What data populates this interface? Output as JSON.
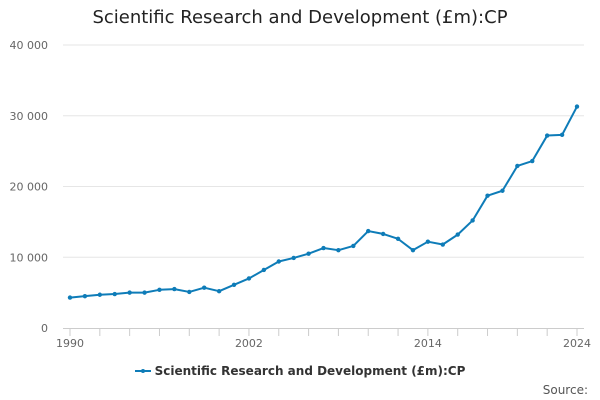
{
  "chart_data": {
    "type": "line",
    "title": "Scientific Research and Development (£m):CP",
    "xlabel": "",
    "ylabel": "",
    "xlim": [
      1990,
      2024
    ],
    "ylim": [
      0,
      40000
    ],
    "y_ticks": [
      0,
      10000,
      20000,
      30000,
      40000
    ],
    "y_tick_labels": [
      "0",
      "10 000",
      "20 000",
      "30 000",
      "40 000"
    ],
    "x_ticks": [
      1990,
      2002,
      2014,
      2024
    ],
    "x_tick_labels": [
      "1990",
      "2002",
      "2014",
      "2024"
    ],
    "grid": true,
    "legend_position": "bottom",
    "series": [
      {
        "name": "Scientific Research and Development (£m):CP",
        "color": "#0e7cb8",
        "x": [
          1990,
          1991,
          1992,
          1993,
          1994,
          1995,
          1996,
          1997,
          1998,
          1999,
          2000,
          2001,
          2002,
          2003,
          2004,
          2005,
          2006,
          2007,
          2008,
          2009,
          2010,
          2011,
          2012,
          2013,
          2014,
          2015,
          2016,
          2017,
          2018,
          2019,
          2020,
          2021,
          2022,
          2023,
          2024
        ],
        "values": [
          4300,
          4500,
          4700,
          4800,
          5000,
          5000,
          5400,
          5500,
          5100,
          5700,
          5200,
          6100,
          7000,
          8200,
          9400,
          9900,
          10500,
          11300,
          11000,
          11600,
          13700,
          13300,
          12600,
          11000,
          12200,
          11800,
          13200,
          15200,
          18700,
          19400,
          22900,
          23600,
          27200,
          27300,
          31300
        ]
      }
    ]
  },
  "legend": {
    "label": "Scientific Research and Development (£m):CP"
  },
  "source": {
    "label": "Source:"
  }
}
